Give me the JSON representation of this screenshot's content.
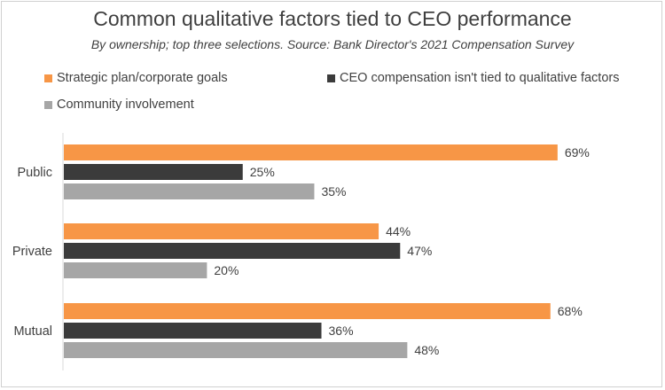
{
  "chart_data": {
    "type": "bar",
    "orientation": "horizontal",
    "title": "Common qualitative factors tied to CEO performance",
    "subtitle": "By ownership; top three selections. Source: Bank Director's 2021 Compensation Survey",
    "categories": [
      "Public",
      "Private",
      "Mutual"
    ],
    "series": [
      {
        "name": "Strategic plan/corporate goals",
        "values": [
          69,
          44,
          68
        ],
        "labels": [
          "69%",
          "44%",
          "68%"
        ],
        "color": "#f79646"
      },
      {
        "name": "CEO compensation isn't tied to qualitative factors",
        "values": [
          25,
          47,
          36
        ],
        "labels": [
          "25%",
          "47%",
          "36%"
        ],
        "color": "#3b3b3b"
      },
      {
        "name": "Community involvement",
        "values": [
          35,
          20,
          48
        ],
        "labels": [
          "35%",
          "20%",
          "48%"
        ],
        "color": "#a6a6a6"
      }
    ],
    "xlim": [
      0,
      75
    ],
    "grid": false,
    "legend_position": "top"
  }
}
